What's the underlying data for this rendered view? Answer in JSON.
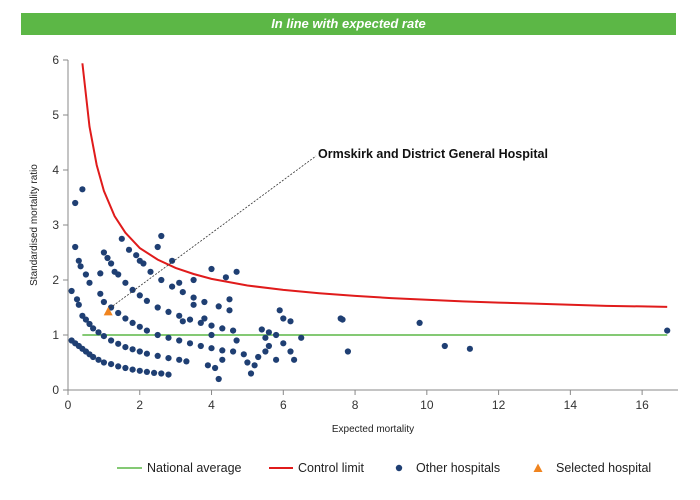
{
  "banner": {
    "text": "In line with expected rate"
  },
  "colors": {
    "banner": "#5cb746",
    "national_average": "#5cb746",
    "control_limit": "#e01b1b",
    "other_hospitals": "#1f3f73",
    "selected_hospital": "#f0841f"
  },
  "chart_data": {
    "type": "scatter",
    "title": "",
    "xlabel": "Expected mortality",
    "ylabel": "Standardised mortality ratio",
    "xlim": [
      0,
      17
    ],
    "ylim": [
      0,
      6
    ],
    "xticks": [
      0,
      2,
      4,
      6,
      8,
      10,
      12,
      14,
      16
    ],
    "yticks": [
      0,
      1,
      2,
      3,
      4,
      5,
      6
    ],
    "grid": false,
    "legend_position": "bottom",
    "annotation": {
      "text": "Ormskirk and District General Hospital",
      "x": 1.12,
      "y": 1.42
    },
    "series": [
      {
        "name": "National average",
        "kind": "line",
        "x": [
          0.4,
          16.7
        ],
        "y": [
          1.0,
          1.0
        ]
      },
      {
        "name": "Control limit",
        "kind": "line",
        "x": [
          0.4,
          0.6,
          0.8,
          1.0,
          1.3,
          1.6,
          2.0,
          2.5,
          3.0,
          3.5,
          4.0,
          5.0,
          6.0,
          7.0,
          8.0,
          9.0,
          10.0,
          11.0,
          12.0,
          13.0,
          14.0,
          15.0,
          16.0,
          16.7
        ],
        "y": [
          5.94,
          4.79,
          4.09,
          3.62,
          3.16,
          2.86,
          2.58,
          2.37,
          2.22,
          2.11,
          2.02,
          1.9,
          1.82,
          1.76,
          1.71,
          1.67,
          1.64,
          1.61,
          1.59,
          1.57,
          1.55,
          1.53,
          1.52,
          1.51
        ]
      },
      {
        "name": "Other hospitals",
        "kind": "scatter",
        "points": [
          [
            0.1,
            0.9
          ],
          [
            0.2,
            0.85
          ],
          [
            0.3,
            0.8
          ],
          [
            0.4,
            0.75
          ],
          [
            0.5,
            0.7
          ],
          [
            0.6,
            0.65
          ],
          [
            0.7,
            0.6
          ],
          [
            0.85,
            0.55
          ],
          [
            1.0,
            0.5
          ],
          [
            1.2,
            0.47
          ],
          [
            1.4,
            0.43
          ],
          [
            1.6,
            0.4
          ],
          [
            1.8,
            0.37
          ],
          [
            2.0,
            0.35
          ],
          [
            2.2,
            0.33
          ],
          [
            2.4,
            0.31
          ],
          [
            2.6,
            0.3
          ],
          [
            2.8,
            0.28
          ],
          [
            0.4,
            1.35
          ],
          [
            0.5,
            1.28
          ],
          [
            0.6,
            1.2
          ],
          [
            0.7,
            1.12
          ],
          [
            0.85,
            1.05
          ],
          [
            1.0,
            0.98
          ],
          [
            1.2,
            0.9
          ],
          [
            1.4,
            0.84
          ],
          [
            1.6,
            0.78
          ],
          [
            1.8,
            0.74
          ],
          [
            2.0,
            0.7
          ],
          [
            2.2,
            0.66
          ],
          [
            2.5,
            0.62
          ],
          [
            2.8,
            0.58
          ],
          [
            3.1,
            0.55
          ],
          [
            3.3,
            0.52
          ],
          [
            0.9,
            1.75
          ],
          [
            1.0,
            1.6
          ],
          [
            1.2,
            1.5
          ],
          [
            1.4,
            1.4
          ],
          [
            1.6,
            1.3
          ],
          [
            1.8,
            1.22
          ],
          [
            2.0,
            1.15
          ],
          [
            2.2,
            1.08
          ],
          [
            2.5,
            1.0
          ],
          [
            2.8,
            0.95
          ],
          [
            3.1,
            0.9
          ],
          [
            3.4,
            0.85
          ],
          [
            3.7,
            0.8
          ],
          [
            4.0,
            0.76
          ],
          [
            4.3,
            0.72
          ],
          [
            4.6,
            0.7
          ],
          [
            1.4,
            2.1
          ],
          [
            1.6,
            1.95
          ],
          [
            1.8,
            1.82
          ],
          [
            2.0,
            1.72
          ],
          [
            2.2,
            1.62
          ],
          [
            2.5,
            1.5
          ],
          [
            2.8,
            1.42
          ],
          [
            3.1,
            1.35
          ],
          [
            3.4,
            1.28
          ],
          [
            3.7,
            1.22
          ],
          [
            4.0,
            1.17
          ],
          [
            4.3,
            1.12
          ],
          [
            4.6,
            1.08
          ],
          [
            1.9,
            2.45
          ],
          [
            2.1,
            2.3
          ],
          [
            2.3,
            2.15
          ],
          [
            2.6,
            2.0
          ],
          [
            2.9,
            1.88
          ],
          [
            3.2,
            1.78
          ],
          [
            3.5,
            1.68
          ],
          [
            3.8,
            1.6
          ],
          [
            4.2,
            1.52
          ],
          [
            4.5,
            1.45
          ],
          [
            0.1,
            1.8
          ],
          [
            0.25,
            1.65
          ],
          [
            0.3,
            1.55
          ],
          [
            0.5,
            2.1
          ],
          [
            0.6,
            1.95
          ],
          [
            0.9,
            2.12
          ],
          [
            1.3,
            2.15
          ],
          [
            1.5,
            2.75
          ],
          [
            1.7,
            2.55
          ],
          [
            2.0,
            2.35
          ],
          [
            0.2,
            2.6
          ],
          [
            0.3,
            2.35
          ],
          [
            0.35,
            2.25
          ],
          [
            0.2,
            3.4
          ],
          [
            0.4,
            3.65
          ],
          [
            1.0,
            2.5
          ],
          [
            1.1,
            2.4
          ],
          [
            1.2,
            2.3
          ],
          [
            2.5,
            2.6
          ],
          [
            2.6,
            2.8
          ],
          [
            2.9,
            2.35
          ],
          [
            3.1,
            1.95
          ],
          [
            3.5,
            2.0
          ],
          [
            3.2,
            1.25
          ],
          [
            3.5,
            1.55
          ],
          [
            3.8,
            1.3
          ],
          [
            3.9,
            0.45
          ],
          [
            4.2,
            0.2
          ],
          [
            4.1,
            0.4
          ],
          [
            4.3,
            0.55
          ],
          [
            4.0,
            2.2
          ],
          [
            4.4,
            2.05
          ],
          [
            4.7,
            2.15
          ],
          [
            4.5,
            1.65
          ],
          [
            4.0,
            1.0
          ],
          [
            4.9,
            0.65
          ],
          [
            5.0,
            0.5
          ],
          [
            5.2,
            0.45
          ],
          [
            5.3,
            0.6
          ],
          [
            5.6,
            0.8
          ],
          [
            5.8,
            0.55
          ],
          [
            5.5,
            0.95
          ],
          [
            5.4,
            1.1
          ],
          [
            5.6,
            1.05
          ],
          [
            5.8,
            1.0
          ],
          [
            6.0,
            0.85
          ],
          [
            6.2,
            0.7
          ],
          [
            5.9,
            1.45
          ],
          [
            6.0,
            1.3
          ],
          [
            6.2,
            1.25
          ],
          [
            6.3,
            0.55
          ],
          [
            6.5,
            0.95
          ],
          [
            5.1,
            0.3
          ],
          [
            5.5,
            0.7
          ],
          [
            4.7,
            0.9
          ],
          [
            7.6,
            1.3
          ],
          [
            7.65,
            1.28
          ],
          [
            7.8,
            0.7
          ],
          [
            9.8,
            1.22
          ],
          [
            10.5,
            0.8
          ],
          [
            11.2,
            0.75
          ],
          [
            16.7,
            1.08
          ]
        ]
      },
      {
        "name": "Selected hospital",
        "kind": "marker",
        "points": [
          [
            1.12,
            1.42
          ]
        ]
      }
    ]
  }
}
